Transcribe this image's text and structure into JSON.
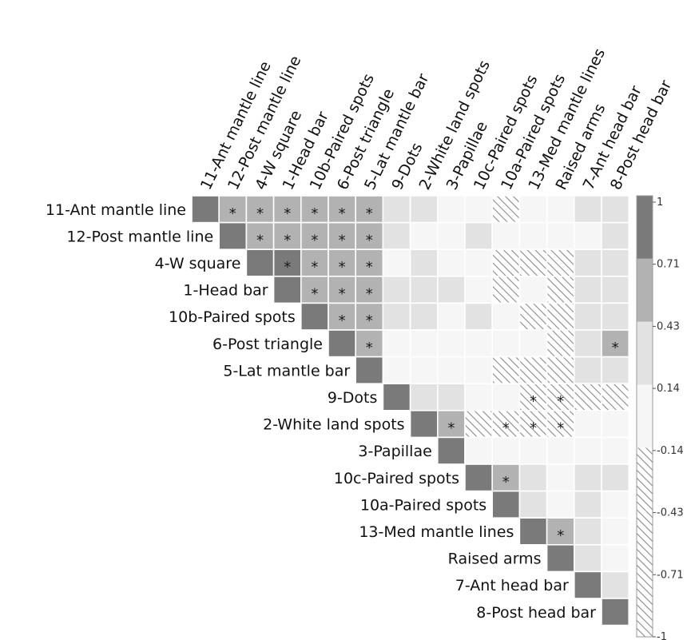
{
  "chart_data": {
    "type": "heatmap",
    "variables": [
      "11-Ant mantle line",
      "12-Post mantle line",
      "4-W square",
      "1-Head bar",
      "10b-Paired spots",
      "6-Post triangle",
      "5-Lat mantle bar",
      "9-Dots",
      "2-White land spots",
      "3-Papillae",
      "10c-Paired spots",
      "10a-Paired spots",
      "13-Med mantle lines",
      "Raised arms",
      "7-Ant head bar",
      "8-Post head bar"
    ],
    "matrix_upper_triangle": [
      [
        1,
        0.6,
        0.6,
        0.6,
        0.55,
        0.6,
        0.6,
        0.2,
        0.2,
        0.05,
        0.05,
        -0.5,
        0.05,
        0.05,
        0.2,
        0.2
      ],
      [
        1,
        0.6,
        0.6,
        0.55,
        0.6,
        0.55,
        0.2,
        0.05,
        0.05,
        0.2,
        0.05,
        0.05,
        0.05,
        0.05,
        0.2
      ],
      [
        1,
        0.75,
        0.55,
        0.6,
        0.55,
        0.05,
        0.2,
        0.05,
        0.05,
        -0.5,
        -0.5,
        -0.5,
        0.2,
        0.2
      ],
      [
        1,
        0.55,
        0.6,
        0.55,
        0.2,
        0.2,
        0.2,
        0.05,
        -0.5,
        0.05,
        -0.5,
        0.2,
        0.2
      ],
      [
        1,
        0.6,
        0.55,
        0.2,
        0.2,
        0.05,
        0.2,
        0.05,
        -0.5,
        -0.5,
        0.2,
        0.2
      ],
      [
        1,
        0.55,
        0.05,
        0.05,
        0.05,
        0.05,
        0.05,
        0.05,
        -0.5,
        0.2,
        0.5
      ],
      [
        1,
        0.05,
        0.05,
        0.05,
        0.05,
        -0.5,
        -0.5,
        -0.5,
        0.2,
        0.4
      ],
      [
        1,
        0.2,
        0.2,
        0.05,
        0.05,
        -0.5,
        -0.5,
        -0.5,
        -0.5
      ],
      [
        1,
        0.5,
        -0.5,
        -0.5,
        -0.5,
        -0.5,
        0.05,
        0.05
      ],
      [
        1,
        0.05,
        0.05,
        0.05,
        0.05,
        0.05,
        0.05
      ],
      [
        1,
        0.6,
        0.2,
        0.05,
        0.2,
        0.2
      ],
      [
        1,
        0.2,
        0.05,
        0.2,
        0.05
      ],
      [
        1,
        0.6,
        0.2,
        0.05
      ],
      [
        1,
        0.2,
        0.05
      ],
      [
        1,
        0.2
      ],
      [
        1
      ]
    ],
    "significant_pairs": [
      [
        0,
        1
      ],
      [
        0,
        2
      ],
      [
        0,
        3
      ],
      [
        0,
        4
      ],
      [
        0,
        5
      ],
      [
        0,
        6
      ],
      [
        1,
        2
      ],
      [
        1,
        3
      ],
      [
        1,
        4
      ],
      [
        1,
        5
      ],
      [
        1,
        6
      ],
      [
        2,
        3
      ],
      [
        2,
        4
      ],
      [
        2,
        5
      ],
      [
        2,
        6
      ],
      [
        3,
        4
      ],
      [
        3,
        5
      ],
      [
        3,
        6
      ],
      [
        4,
        5
      ],
      [
        4,
        6
      ],
      [
        5,
        6
      ],
      [
        5,
        15
      ],
      [
        7,
        12
      ],
      [
        7,
        13
      ],
      [
        8,
        9
      ],
      [
        8,
        11
      ],
      [
        8,
        12
      ],
      [
        8,
        13
      ],
      [
        10,
        11
      ],
      [
        12,
        13
      ]
    ],
    "colorbar": {
      "ticks": [
        "1",
        "0.71",
        "0.43",
        "0.14",
        "-0.14",
        "-0.43",
        "-0.71",
        "-1"
      ],
      "bands": [
        {
          "color": "#7a7a7a",
          "hatch": false
        },
        {
          "color": "#b2b2b2",
          "hatch": false
        },
        {
          "color": "#e2e2e2",
          "hatch": false
        },
        {
          "color": "#f6f6f6",
          "hatch": false
        },
        {
          "color": "#ffffff",
          "hatch": true
        },
        {
          "color": "#ffffff",
          "hatch": true
        },
        {
          "color": "#ffffff",
          "hatch": true
        }
      ]
    },
    "star_symbol": "*"
  }
}
